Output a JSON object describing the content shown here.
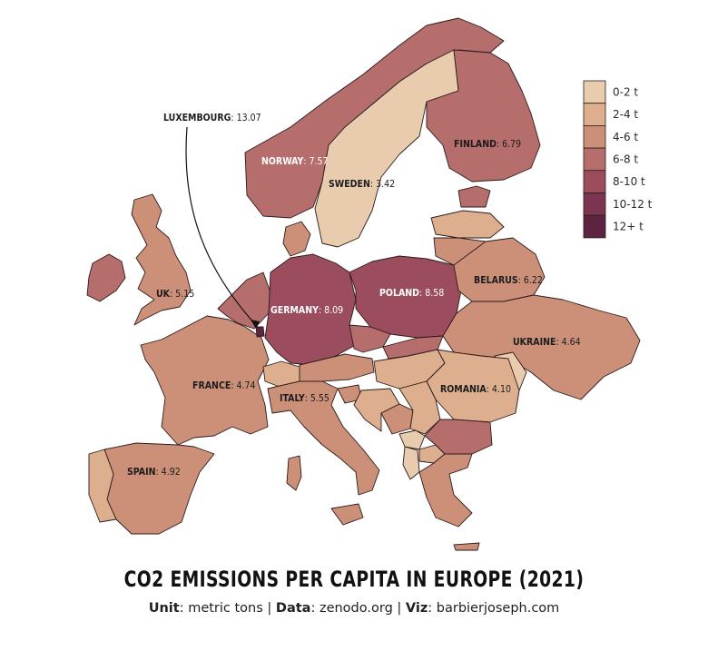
{
  "title": "CO2 EMISSIONS PER CAPITA IN EUROPE (2021)",
  "subtitle": {
    "unit_key": "Unit",
    "unit_value": ": metric tons",
    "sep1": " | ",
    "data_key": "Data",
    "data_value": ": zenodo.org",
    "sep2": " | ",
    "viz_key": "Viz",
    "viz_value": ": barbierjoseph.com"
  },
  "legend": [
    {
      "label": "0-2 t",
      "color": "#e8ccad"
    },
    {
      "label": "2-4 t",
      "color": "#ddaf8f"
    },
    {
      "label": "4-6 t",
      "color": "#cc9078"
    },
    {
      "label": "6-8 t",
      "color": "#b66e6c"
    },
    {
      "label": "8-10 t",
      "color": "#9c4d5d"
    },
    {
      "label": "10-12 t",
      "color": "#7b3550"
    },
    {
      "label": "12+ t",
      "color": "#5c2440"
    }
  ],
  "labels": {
    "norway": {
      "name": "NORWAY",
      "value": ": 7.57"
    },
    "sweden": {
      "name": "SWEDEN",
      "value": ": 3.42"
    },
    "finland": {
      "name": "FINLAND",
      "value": ": 6.79"
    },
    "uk": {
      "name": "UK",
      "value": ": 5.15"
    },
    "germany": {
      "name": "GERMANY",
      "value": ": 8.09"
    },
    "poland": {
      "name": "POLAND",
      "value": ": 8.58"
    },
    "belarus": {
      "name": "BELARUS",
      "value": ": 6.22"
    },
    "ukraine": {
      "name": "UKRAINE",
      "value": ": 4.64"
    },
    "france": {
      "name": "FRANCE",
      "value": ": 4.74"
    },
    "italy": {
      "name": "ITALY",
      "value": ": 5.55"
    },
    "romania": {
      "name": "ROMANIA",
      "value": ": 4.10"
    },
    "spain": {
      "name": "SPAIN",
      "value": ": 4.92"
    },
    "luxembourg": {
      "name": "LUXEMBOURG",
      "value": ": 13.07"
    }
  }
}
